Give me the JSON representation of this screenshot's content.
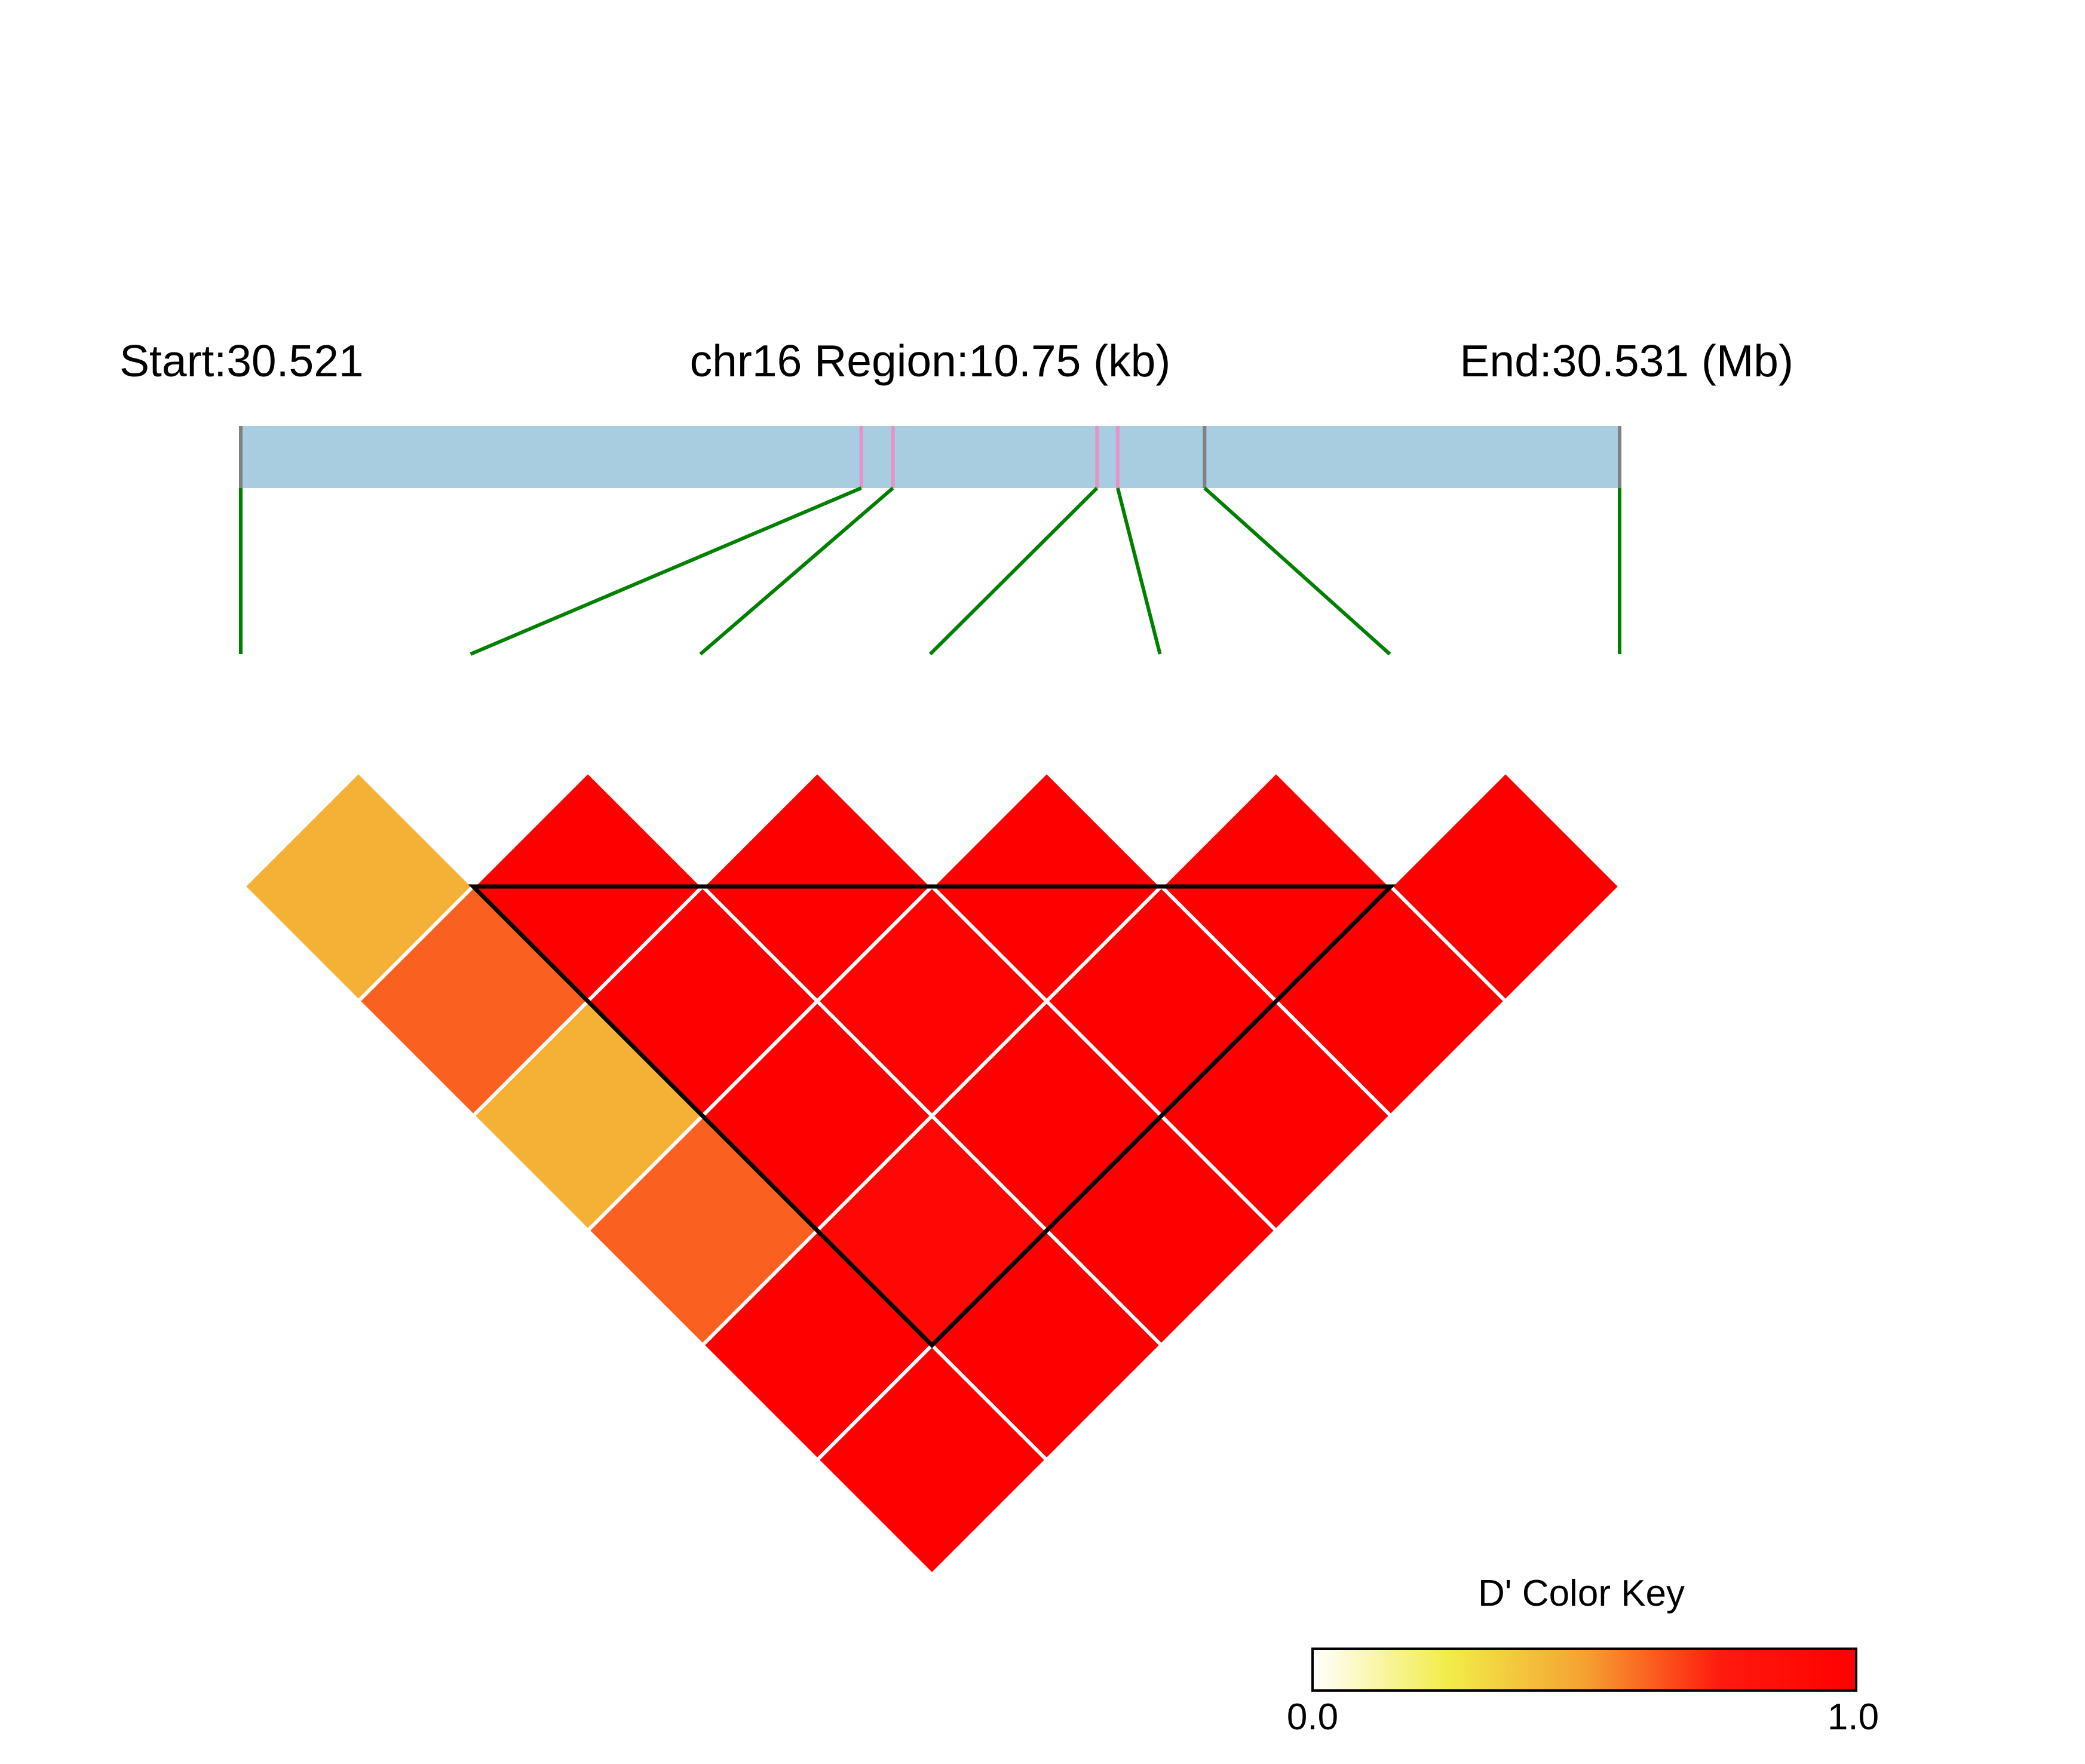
{
  "chart_data": {
    "type": "heatmap",
    "subtype": "linkage-disequilibrium",
    "header": {
      "start_label": "Start:30.521",
      "region_label": "chr16 Region:10.75 (kb)",
      "end_label": "End:30.531 (Mb)"
    },
    "region": {
      "chromosome": "chr16",
      "start_mb": 30.521,
      "end_mb": 30.531,
      "length_kb": 10.75
    },
    "snp_count": 7,
    "snp_positions_mb": [
      30.521,
      30.5255,
      30.52573,
      30.52721,
      30.52736,
      30.52799,
      30.531
    ],
    "pairs": [
      {
        "i": 1,
        "j": 2,
        "d_prime": 0.45
      },
      {
        "i": 1,
        "j": 3,
        "d_prime": 0.62
      },
      {
        "i": 1,
        "j": 4,
        "d_prime": 0.45
      },
      {
        "i": 1,
        "j": 5,
        "d_prime": 0.62
      },
      {
        "i": 1,
        "j": 6,
        "d_prime": 1.0
      },
      {
        "i": 1,
        "j": 7,
        "d_prime": 1.0
      },
      {
        "i": 2,
        "j": 3,
        "d_prime": 1.0
      },
      {
        "i": 2,
        "j": 4,
        "d_prime": 1.0
      },
      {
        "i": 2,
        "j": 5,
        "d_prime": 1.0
      },
      {
        "i": 2,
        "j": 6,
        "d_prime": 0.93
      },
      {
        "i": 2,
        "j": 7,
        "d_prime": 1.0
      },
      {
        "i": 3,
        "j": 4,
        "d_prime": 1.0
      },
      {
        "i": 3,
        "j": 5,
        "d_prime": 0.98
      },
      {
        "i": 3,
        "j": 6,
        "d_prime": 1.0
      },
      {
        "i": 3,
        "j": 7,
        "d_prime": 1.0
      },
      {
        "i": 4,
        "j": 5,
        "d_prime": 1.0
      },
      {
        "i": 4,
        "j": 6,
        "d_prime": 1.0
      },
      {
        "i": 4,
        "j": 7,
        "d_prime": 1.0
      },
      {
        "i": 5,
        "j": 6,
        "d_prime": 1.0
      },
      {
        "i": 5,
        "j": 7,
        "d_prime": 1.0
      },
      {
        "i": 6,
        "j": 7,
        "d_prime": 1.0
      }
    ],
    "haplotype_blocks": [
      {
        "first_snp": 2,
        "last_snp": 5
      }
    ],
    "color_key": {
      "title": "D' Color Key",
      "min_label": "0.0",
      "max_label": "1.0",
      "min": 0.0,
      "max": 1.0,
      "stops": [
        "#ffffff",
        "#f2ec48",
        "#f5a232",
        "#ff1a0e",
        "#ff0000"
      ]
    },
    "colors": {
      "gene_bar": "#a8cde0",
      "snp_tick": "#e891c4",
      "boundary_tick": "#808080",
      "connector": "#008000",
      "block_outline": "#000000",
      "cell_border": "#ffffff"
    }
  }
}
